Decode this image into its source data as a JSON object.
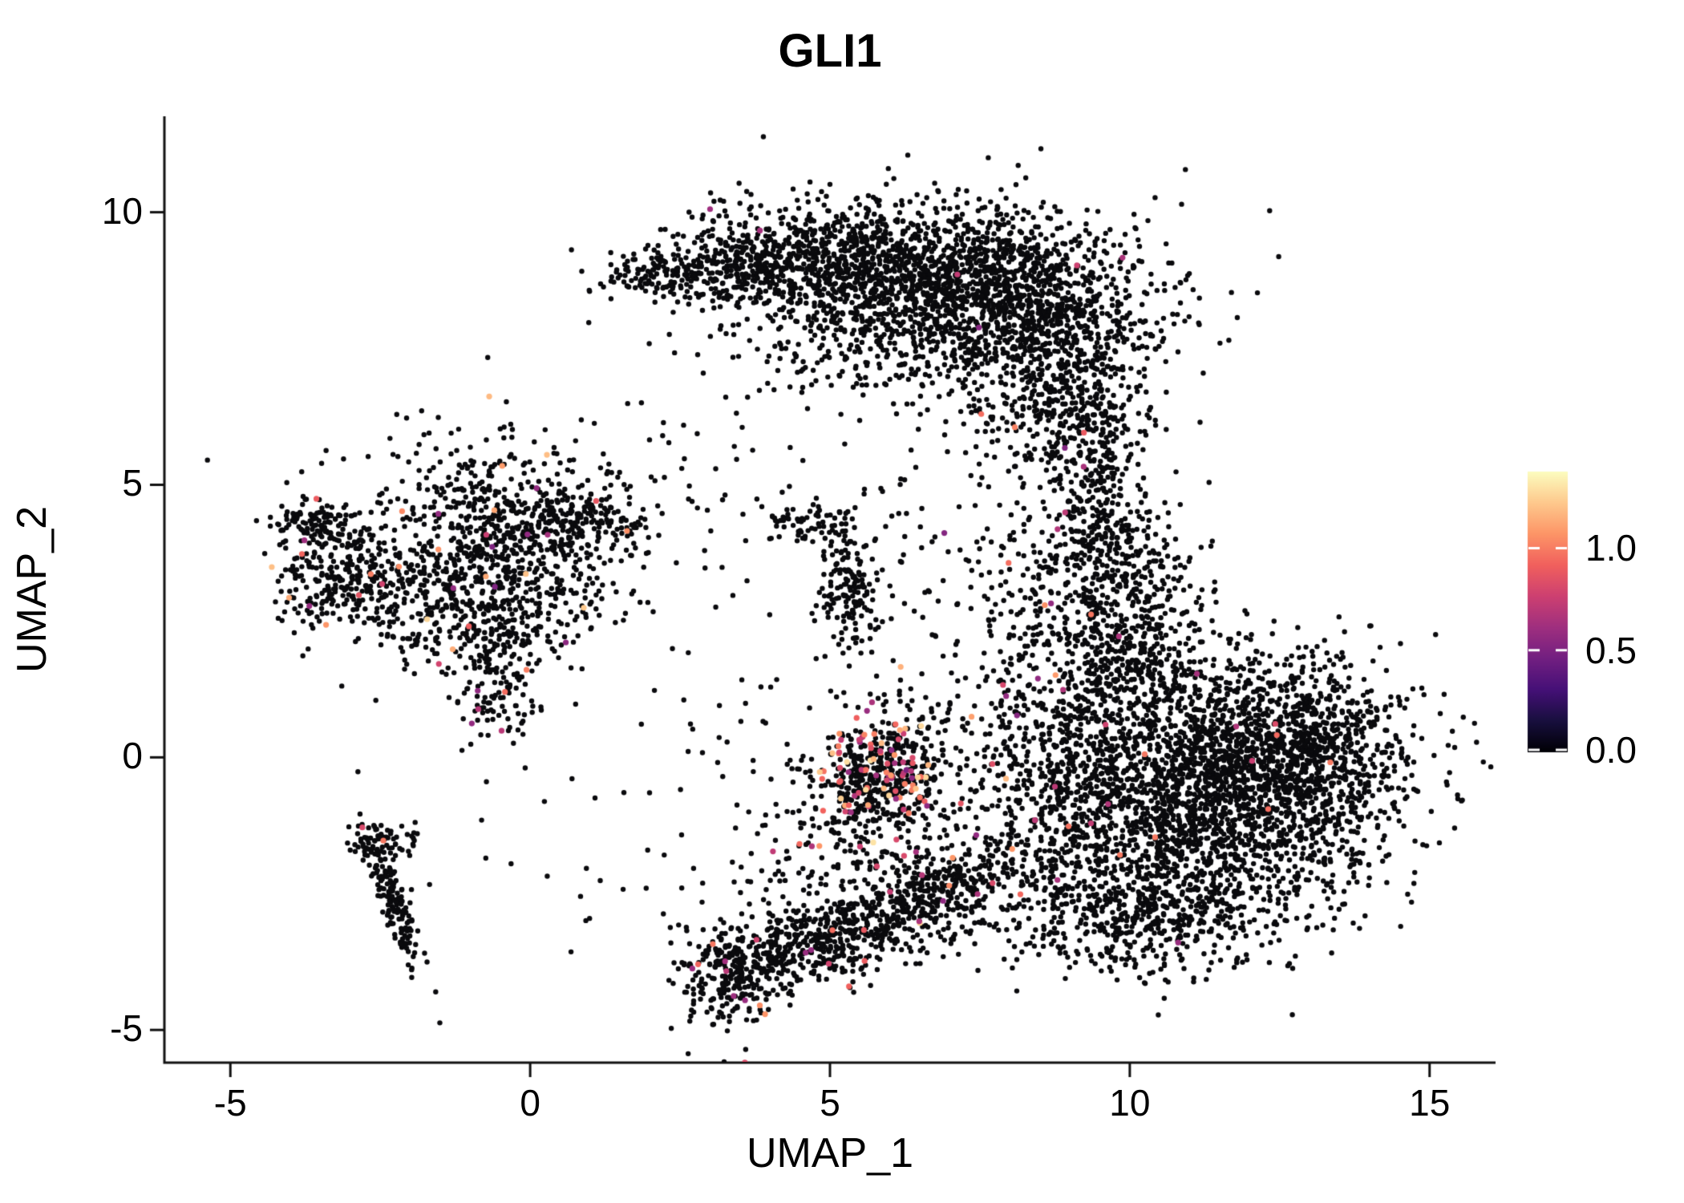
{
  "figure": {
    "background": "#ffffff",
    "axis_color": "#111111"
  },
  "chart_data": {
    "type": "scatter",
    "title": "GLI1",
    "xlabel": "UMAP_1",
    "ylabel": "UMAP_2",
    "xlim": [
      -6.1,
      16.1
    ],
    "ylim": [
      -5.6,
      11.76
    ],
    "grid": false,
    "xticks": [
      -5,
      0,
      5,
      10,
      15
    ],
    "xtick_labels": [
      "-5",
      "0",
      "5",
      "10",
      "15"
    ],
    "yticks": [
      10,
      5,
      0,
      -5
    ],
    "ytick_labels": [
      "10",
      "5",
      "0",
      "-5"
    ],
    "point_color_zero": "#0a0a0d",
    "point_radius": 3.2,
    "seed": 1337,
    "legend": {
      "position": "right",
      "ticks": [
        "1.0",
        "0.5",
        "0.0"
      ],
      "tick_values": [
        1.0,
        0.5,
        0.0
      ],
      "vmin": 0.0,
      "vmax": 1.375,
      "colormap": "magma",
      "stops": [
        "#000004",
        "#180f3e",
        "#451077",
        "#721f81",
        "#9f2f7f",
        "#cd4071",
        "#f1605d",
        "#fd9567",
        "#fec98d",
        "#fcfdbf"
      ]
    },
    "clusters": [
      {
        "name": "top-crescent-core",
        "cx": 7.3,
        "cy": 8.6,
        "sx": 1.5,
        "sy": 0.75,
        "n": 1700,
        "rot": 0,
        "frac": 0.004,
        "vmin": 0.5,
        "vmax": 1.0
      },
      {
        "name": "top-crescent-left",
        "cx": 5.0,
        "cy": 9.2,
        "sx": 1.1,
        "sy": 0.55,
        "n": 550,
        "rot": 0,
        "frac": 0.003,
        "vmin": 0.5,
        "vmax": 1.0
      },
      {
        "name": "top-crescent-far-left",
        "cx": 3.2,
        "cy": 9.0,
        "sx": 0.8,
        "sy": 0.4,
        "n": 260,
        "rot": 0,
        "frac": 0.002,
        "vmin": 0.5,
        "vmax": 0.9
      },
      {
        "name": "top-crescent-tip",
        "cx": 2.0,
        "cy": 8.85,
        "sx": 0.45,
        "sy": 0.2,
        "n": 90,
        "rot": 0,
        "frac": 0,
        "vmin": 0.5,
        "vmax": 0.9
      },
      {
        "name": "top-right-slope",
        "cx": 8.8,
        "cy": 7.0,
        "sx": 0.75,
        "sy": 0.9,
        "n": 520,
        "rot": 0,
        "frac": 0.006,
        "vmin": 0.5,
        "vmax": 1.0
      },
      {
        "name": "top-right-neck",
        "cx": 9.35,
        "cy": 5.4,
        "sx": 0.5,
        "sy": 0.85,
        "n": 260,
        "rot": 0,
        "frac": 0.008,
        "vmin": 0.5,
        "vmax": 1.1
      },
      {
        "name": "top-inner-sparse",
        "cx": 6.2,
        "cy": 7.6,
        "sx": 1.2,
        "sy": 0.6,
        "n": 200,
        "rot": 0,
        "frac": 0.005,
        "vmin": 0.5,
        "vmax": 1.0
      },
      {
        "name": "right-blob-core",
        "cx": 11.3,
        "cy": -0.6,
        "sx": 1.5,
        "sy": 1.15,
        "n": 2500,
        "rot": 0,
        "frac": 0.005,
        "vmin": 0.5,
        "vmax": 1.1
      },
      {
        "name": "right-blob-east",
        "cx": 12.9,
        "cy": 0.2,
        "sx": 0.85,
        "sy": 0.8,
        "n": 550,
        "rot": 0,
        "frac": 0.004,
        "vmin": 0.5,
        "vmax": 1.0
      },
      {
        "name": "right-blob-upperleft",
        "cx": 9.9,
        "cy": 1.7,
        "sx": 0.8,
        "sy": 1.0,
        "n": 480,
        "rot": 0,
        "frac": 0.006,
        "vmin": 0.5,
        "vmax": 1.1
      },
      {
        "name": "right-blob-neck-up",
        "cx": 9.7,
        "cy": 3.6,
        "sx": 0.6,
        "sy": 0.8,
        "n": 280,
        "rot": 0,
        "frac": 0.006,
        "vmin": 0.5,
        "vmax": 1.1
      },
      {
        "name": "right-blob-bottom",
        "cx": 10.3,
        "cy": -2.9,
        "sx": 1.2,
        "sy": 0.55,
        "n": 480,
        "rot": 0,
        "frac": 0.004,
        "vmin": 0.5,
        "vmax": 1.0
      },
      {
        "name": "right-blob-west-edge",
        "cx": 8.7,
        "cy": -0.9,
        "sx": 0.65,
        "sy": 1.3,
        "n": 380,
        "rot": 0,
        "frac": 0.008,
        "vmin": 0.5,
        "vmax": 1.1
      },
      {
        "name": "right-upper-sparse",
        "cx": 8.4,
        "cy": 2.6,
        "sx": 0.9,
        "sy": 0.9,
        "n": 170,
        "rot": 0,
        "frac": 0.01,
        "vmin": 0.5,
        "vmax": 1.1
      },
      {
        "name": "left-cluster-core",
        "cx": -0.4,
        "cy": 3.8,
        "sx": 1.0,
        "sy": 0.95,
        "n": 720,
        "rot": 0,
        "frac": 0.02,
        "vmin": 0.5,
        "vmax": 1.3
      },
      {
        "name": "left-cluster-west",
        "cx": -3.1,
        "cy": 3.3,
        "sx": 0.55,
        "sy": 0.5,
        "n": 280,
        "rot": 0,
        "frac": 0.02,
        "vmin": 0.5,
        "vmax": 1.25
      },
      {
        "name": "left-cluster-west-top",
        "cx": -3.6,
        "cy": 4.3,
        "sx": 0.35,
        "sy": 0.25,
        "n": 90,
        "rot": 0,
        "frac": 0.01,
        "vmin": 0.5,
        "vmax": 1.2
      },
      {
        "name": "left-cluster-tail-down",
        "cx": -0.55,
        "cy": 1.6,
        "sx": 0.35,
        "sy": 0.75,
        "n": 190,
        "rot": 0,
        "frac": 0.03,
        "vmin": 0.5,
        "vmax": 1.2
      },
      {
        "name": "left-cluster-east-arm",
        "cx": 0.9,
        "cy": 4.4,
        "sx": 0.55,
        "sy": 0.3,
        "n": 140,
        "rot": 0,
        "frac": 0.01,
        "vmin": 0.5,
        "vmax": 1.2
      },
      {
        "name": "left-cluster-mid",
        "cx": -1.6,
        "cy": 2.7,
        "sx": 0.6,
        "sy": 0.55,
        "n": 160,
        "rot": 0,
        "frac": 0.02,
        "vmin": 0.5,
        "vmax": 1.2
      },
      {
        "name": "left-cluster-halo",
        "cx": -0.8,
        "cy": 4.5,
        "sx": 1.6,
        "sy": 1.0,
        "n": 160,
        "rot": 0,
        "frac": 0.01,
        "vmin": 0.5,
        "vmax": 1.2
      },
      {
        "name": "mid-streak",
        "cx": 5.35,
        "cy": 3.1,
        "sx": 0.28,
        "sy": 0.6,
        "n": 170,
        "rot": 0,
        "frac": 0.02,
        "vmin": 0.5,
        "vmax": 1.0
      },
      {
        "name": "mid-tiny",
        "cx": 4.65,
        "cy": 4.3,
        "sx": 0.4,
        "sy": 0.2,
        "n": 70,
        "rot": 0,
        "frac": 0,
        "vmin": 0.5,
        "vmax": 1.0
      },
      {
        "name": "mid-hot-blob",
        "cx": 5.75,
        "cy": -0.35,
        "sx": 0.5,
        "sy": 0.55,
        "n": 420,
        "rot": 0,
        "frac": 0.22,
        "vmin": 0.55,
        "vmax": 1.3
      },
      {
        "name": "mid-hot-halo",
        "cx": 6.6,
        "cy": -0.1,
        "sx": 0.8,
        "sy": 1.0,
        "n": 160,
        "rot": 0,
        "frac": 0.1,
        "vmin": 0.5,
        "vmax": 1.25
      },
      {
        "name": "arc-bottom-left",
        "cx": 3.35,
        "cy": -4.0,
        "sx": 0.4,
        "sy": 0.5,
        "n": 240,
        "rot": 0,
        "frac": 0.05,
        "vmin": 0.5,
        "vmax": 1.1
      },
      {
        "name": "arc-seg-1",
        "cx": 4.6,
        "cy": -3.5,
        "sx": 0.8,
        "sy": 0.4,
        "n": 300,
        "rot": 15,
        "frac": 0.03,
        "vmin": 0.5,
        "vmax": 1.1
      },
      {
        "name": "arc-seg-2",
        "cx": 5.8,
        "cy": -3.0,
        "sx": 0.9,
        "sy": 0.38,
        "n": 300,
        "rot": 20,
        "frac": 0.03,
        "vmin": 0.5,
        "vmax": 1.1
      },
      {
        "name": "arc-seg-3",
        "cx": 7.0,
        "cy": -2.4,
        "sx": 0.6,
        "sy": 0.33,
        "n": 200,
        "rot": 25,
        "frac": 0.03,
        "vmin": 0.5,
        "vmax": 1.1
      },
      {
        "name": "arc-halo",
        "cx": 5.6,
        "cy": -2.0,
        "sx": 1.1,
        "sy": 0.5,
        "n": 130,
        "rot": 0,
        "frac": 0.05,
        "vmin": 0.5,
        "vmax": 1.1
      },
      {
        "name": "left-streak",
        "cx": -2.3,
        "cy": -2.5,
        "sx": 0.14,
        "sy": 0.8,
        "n": 170,
        "rot": 18,
        "frac": 0.02,
        "vmin": 0.5,
        "vmax": 1.0
      },
      {
        "name": "left-streak-branch",
        "cx": -2.45,
        "cy": -1.55,
        "sx": 0.3,
        "sy": 0.15,
        "n": 50,
        "rot": 0,
        "frac": 0.02,
        "vmin": 0.5,
        "vmax": 1.0
      },
      {
        "name": "sparse-top-mid",
        "cx": 3.3,
        "cy": 6.3,
        "sx": 1.2,
        "sy": 1.2,
        "n": 40,
        "rot": 0,
        "frac": 0,
        "vmin": 0.5,
        "vmax": 1.0
      },
      {
        "name": "sparse-mid-right",
        "cx": 7.3,
        "cy": 4.2,
        "sx": 1.0,
        "sy": 1.1,
        "n": 55,
        "rot": 0,
        "frac": 0.02,
        "vmin": 0.5,
        "vmax": 1.2
      },
      {
        "name": "sparse-center",
        "cx": 4.0,
        "cy": 0.8,
        "sx": 1.3,
        "sy": 1.5,
        "n": 55,
        "rot": 0,
        "frac": 0.02,
        "vmin": 0.5,
        "vmax": 1.1
      },
      {
        "name": "sparse-low-left",
        "cx": 1.6,
        "cy": -2.0,
        "sx": 1.6,
        "sy": 1.0,
        "n": 25,
        "rot": 0,
        "frac": 0,
        "vmin": 0.5,
        "vmax": 1.0
      },
      {
        "name": "sparse-below-hot",
        "cx": 4.6,
        "cy": -0.9,
        "sx": 0.9,
        "sy": 0.8,
        "n": 60,
        "rot": 0,
        "frac": 0.05,
        "vmin": 0.5,
        "vmax": 1.2
      }
    ]
  }
}
